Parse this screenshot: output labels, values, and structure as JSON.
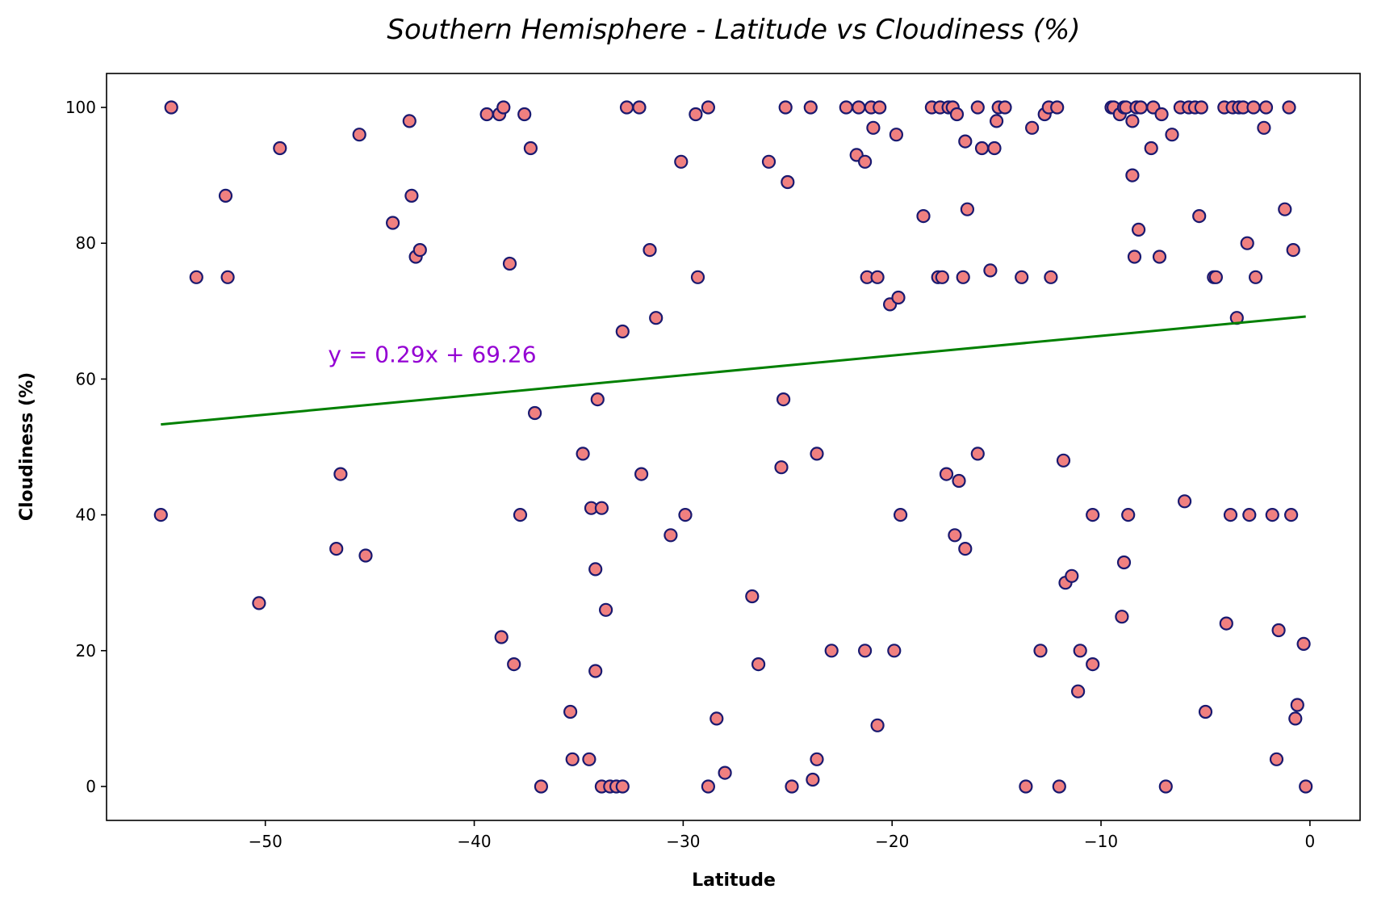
{
  "chart_data": {
    "type": "scatter",
    "title": "Southern Hemisphere - Latitude vs Cloudiness (%)",
    "xlabel": "Latitude",
    "ylabel": "Cloudiness (%)",
    "xlim": [
      -57.6,
      2.4
    ],
    "ylim": [
      -5,
      105
    ],
    "xticks": [
      -50,
      -40,
      -30,
      -20,
      -10,
      0
    ],
    "xtick_labels": [
      "−50",
      "−40",
      "−30",
      "−20",
      "−10",
      "0"
    ],
    "yticks": [
      0,
      20,
      40,
      60,
      80,
      100
    ],
    "ytick_labels": [
      "0",
      "20",
      "40",
      "60",
      "80",
      "100"
    ],
    "grid": false,
    "marker_fill": "#f08080",
    "marker_edge": "#191970",
    "regression": {
      "slope": 0.29,
      "intercept": 69.26,
      "x_range": [
        -55.0,
        -0.2
      ],
      "color": "#008000",
      "equation": "y = 0.29x + 69.26",
      "equation_color": "#9400d3",
      "equation_anchor": [
        -47.0,
        62.5
      ]
    },
    "points": [
      [
        -55.0,
        40
      ],
      [
        -54.5,
        100
      ],
      [
        -53.3,
        75
      ],
      [
        -51.9,
        87
      ],
      [
        -51.8,
        75
      ],
      [
        -50.3,
        27
      ],
      [
        -49.3,
        94
      ],
      [
        -46.6,
        35
      ],
      [
        -46.4,
        46
      ],
      [
        -45.5,
        96
      ],
      [
        -45.2,
        34
      ],
      [
        -43.9,
        83
      ],
      [
        -43.1,
        98
      ],
      [
        -43.0,
        87
      ],
      [
        -42.8,
        78
      ],
      [
        -42.6,
        79
      ],
      [
        -39.4,
        99
      ],
      [
        -38.8,
        99
      ],
      [
        -38.7,
        22
      ],
      [
        -38.6,
        100
      ],
      [
        -38.3,
        77
      ],
      [
        -38.1,
        18
      ],
      [
        -37.8,
        40
      ],
      [
        -37.6,
        99
      ],
      [
        -37.3,
        94
      ],
      [
        -37.1,
        55
      ],
      [
        -36.8,
        0
      ],
      [
        -35.4,
        11
      ],
      [
        -35.3,
        4
      ],
      [
        -34.8,
        49
      ],
      [
        -34.5,
        4
      ],
      [
        -34.4,
        41
      ],
      [
        -34.2,
        17
      ],
      [
        -34.2,
        32
      ],
      [
        -34.1,
        57
      ],
      [
        -33.9,
        41
      ],
      [
        -33.9,
        0
      ],
      [
        -33.7,
        26
      ],
      [
        -33.5,
        0
      ],
      [
        -33.2,
        0
      ],
      [
        -32.9,
        0
      ],
      [
        -32.9,
        67
      ],
      [
        -32.7,
        100
      ],
      [
        -32.1,
        100
      ],
      [
        -32.0,
        46
      ],
      [
        -31.6,
        79
      ],
      [
        -31.3,
        69
      ],
      [
        -30.6,
        37
      ],
      [
        -30.1,
        92
      ],
      [
        -29.9,
        40
      ],
      [
        -29.4,
        99
      ],
      [
        -29.3,
        75
      ],
      [
        -28.8,
        0
      ],
      [
        -28.8,
        100
      ],
      [
        -28.4,
        10
      ],
      [
        -28.0,
        2
      ],
      [
        -26.7,
        28
      ],
      [
        -26.4,
        18
      ],
      [
        -25.9,
        92
      ],
      [
        -25.3,
        47
      ],
      [
        -25.2,
        57
      ],
      [
        -25.1,
        100
      ],
      [
        -25.0,
        89
      ],
      [
        -24.8,
        0
      ],
      [
        -23.9,
        100
      ],
      [
        -23.8,
        1
      ],
      [
        -23.6,
        49
      ],
      [
        -23.6,
        4
      ],
      [
        -22.9,
        20
      ],
      [
        -22.2,
        100
      ],
      [
        -21.7,
        93
      ],
      [
        -21.6,
        100
      ],
      [
        -21.3,
        92
      ],
      [
        -21.3,
        20
      ],
      [
        -21.2,
        75
      ],
      [
        -21.0,
        100
      ],
      [
        -20.9,
        97
      ],
      [
        -20.7,
        75
      ],
      [
        -20.7,
        9
      ],
      [
        -20.6,
        100
      ],
      [
        -20.1,
        71
      ],
      [
        -19.9,
        20
      ],
      [
        -19.8,
        96
      ],
      [
        -19.7,
        72
      ],
      [
        -19.6,
        40
      ],
      [
        -18.5,
        84
      ],
      [
        -18.1,
        100
      ],
      [
        -17.8,
        75
      ],
      [
        -17.7,
        100
      ],
      [
        -17.6,
        75
      ],
      [
        -17.4,
        46
      ],
      [
        -17.3,
        100
      ],
      [
        -17.1,
        100
      ],
      [
        -17.0,
        37
      ],
      [
        -16.9,
        99
      ],
      [
        -16.8,
        45
      ],
      [
        -16.6,
        75
      ],
      [
        -16.5,
        95
      ],
      [
        -16.5,
        35
      ],
      [
        -16.4,
        85
      ],
      [
        -15.9,
        100
      ],
      [
        -15.9,
        49
      ],
      [
        -15.7,
        94
      ],
      [
        -15.3,
        76
      ],
      [
        -15.1,
        94
      ],
      [
        -15.0,
        98
      ],
      [
        -14.9,
        100
      ],
      [
        -14.6,
        100
      ],
      [
        -13.8,
        75
      ],
      [
        -13.6,
        0
      ],
      [
        -13.3,
        97
      ],
      [
        -12.9,
        20
      ],
      [
        -12.7,
        99
      ],
      [
        -12.5,
        100
      ],
      [
        -12.4,
        75
      ],
      [
        -12.1,
        100
      ],
      [
        -12.0,
        0
      ],
      [
        -11.8,
        48
      ],
      [
        -11.7,
        30
      ],
      [
        -11.4,
        31
      ],
      [
        -11.1,
        14
      ],
      [
        -11.0,
        20
      ],
      [
        -10.4,
        40
      ],
      [
        -10.4,
        18
      ],
      [
        -9.5,
        100
      ],
      [
        -9.4,
        100
      ],
      [
        -9.1,
        99
      ],
      [
        -9.0,
        25
      ],
      [
        -8.9,
        33
      ],
      [
        -8.9,
        100
      ],
      [
        -8.8,
        100
      ],
      [
        -8.7,
        40
      ],
      [
        -8.5,
        90
      ],
      [
        -8.5,
        98
      ],
      [
        -8.4,
        78
      ],
      [
        -8.3,
        100
      ],
      [
        -8.2,
        82
      ],
      [
        -8.1,
        100
      ],
      [
        -7.6,
        94
      ],
      [
        -7.5,
        100
      ],
      [
        -7.2,
        78
      ],
      [
        -7.1,
        99
      ],
      [
        -6.9,
        0
      ],
      [
        -6.6,
        96
      ],
      [
        -6.2,
        100
      ],
      [
        -6.0,
        42
      ],
      [
        -5.8,
        100
      ],
      [
        -5.5,
        100
      ],
      [
        -5.3,
        84
      ],
      [
        -5.2,
        100
      ],
      [
        -5.0,
        11
      ],
      [
        -4.6,
        75
      ],
      [
        -4.5,
        75
      ],
      [
        -4.1,
        100
      ],
      [
        -4.0,
        24
      ],
      [
        -3.8,
        40
      ],
      [
        -3.7,
        100
      ],
      [
        -3.5,
        69
      ],
      [
        -3.4,
        100
      ],
      [
        -3.2,
        100
      ],
      [
        -3.0,
        80
      ],
      [
        -2.9,
        40
      ],
      [
        -2.7,
        100
      ],
      [
        -2.6,
        75
      ],
      [
        -2.2,
        97
      ],
      [
        -2.1,
        100
      ],
      [
        -1.8,
        40
      ],
      [
        -1.6,
        4
      ],
      [
        -1.5,
        23
      ],
      [
        -1.2,
        85
      ],
      [
        -1.0,
        100
      ],
      [
        -0.9,
        40
      ],
      [
        -0.8,
        79
      ],
      [
        -0.7,
        10
      ],
      [
        -0.6,
        12
      ],
      [
        -0.3,
        21
      ],
      [
        -0.2,
        0
      ]
    ]
  }
}
